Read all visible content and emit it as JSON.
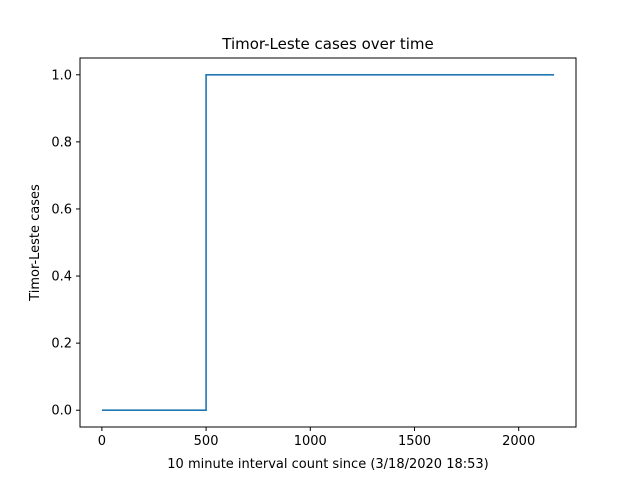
{
  "chart_data": {
    "type": "line",
    "title": "Timor-Leste cases over time",
    "xlabel": "10 minute interval count since (3/18/2020 18:53)",
    "ylabel": "Timor-Leste cases",
    "xlim": [
      -105,
      2275
    ],
    "ylim": [
      -0.05,
      1.05
    ],
    "xticks": [
      0,
      500,
      1000,
      1500,
      2000
    ],
    "xtick_labels": [
      "0",
      "500",
      "1000",
      "1500",
      "2000"
    ],
    "yticks": [
      0.0,
      0.2,
      0.4,
      0.6,
      0.8,
      1.0
    ],
    "ytick_labels": [
      "0.0",
      "0.2",
      "0.4",
      "0.6",
      "0.8",
      "1.0"
    ],
    "grid": false,
    "series": [
      {
        "color": "#1f77b4",
        "step": true,
        "x": [
          0,
          500,
          500,
          2170
        ],
        "y": [
          0,
          0,
          1,
          1
        ]
      }
    ]
  }
}
